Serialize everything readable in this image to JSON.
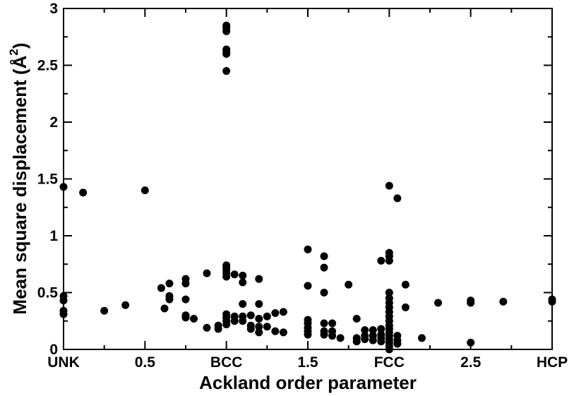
{
  "chart_data": {
    "type": "scatter",
    "xlabel": "Ackland order parameter",
    "ylabel": "Mean square displacement (Å²)",
    "ylabel_text": "Mean square displacement (Å",
    "ylabel_sup": "2",
    "ylabel_close": ")",
    "xlim": [
      0,
      3
    ],
    "ylim": [
      0,
      3
    ],
    "grid": false,
    "xticks": [
      {
        "value": 0,
        "label": "UNK"
      },
      {
        "value": 0.5,
        "label": "0.5"
      },
      {
        "value": 1,
        "label": "BCC"
      },
      {
        "value": 1.5,
        "label": "1.5"
      },
      {
        "value": 2,
        "label": "FCC"
      },
      {
        "value": 2.5,
        "label": "2.5"
      },
      {
        "value": 3,
        "label": "HCP"
      }
    ],
    "yticks": [
      {
        "value": 0,
        "label": "0"
      },
      {
        "value": 0.5,
        "label": "0.5"
      },
      {
        "value": 1,
        "label": "1"
      },
      {
        "value": 1.5,
        "label": "1.5"
      },
      {
        "value": 2,
        "label": "2"
      },
      {
        "value": 2.5,
        "label": "2.5"
      },
      {
        "value": 3,
        "label": "3"
      }
    ],
    "marker_color": "#000000",
    "points": [
      [
        0.0,
        1.43
      ],
      [
        0.0,
        0.47
      ],
      [
        0.0,
        0.43
      ],
      [
        0.0,
        0.34
      ],
      [
        0.0,
        0.31
      ],
      [
        0.12,
        1.38
      ],
      [
        0.5,
        1.4
      ],
      [
        0.25,
        0.34
      ],
      [
        0.38,
        0.39
      ],
      [
        0.6,
        0.54
      ],
      [
        0.62,
        0.36
      ],
      [
        0.65,
        0.58
      ],
      [
        0.65,
        0.47
      ],
      [
        0.65,
        0.44
      ],
      [
        0.75,
        0.62
      ],
      [
        0.75,
        0.58
      ],
      [
        0.75,
        0.44
      ],
      [
        0.75,
        0.3
      ],
      [
        0.75,
        0.28
      ],
      [
        0.8,
        0.27
      ],
      [
        0.88,
        0.67
      ],
      [
        0.88,
        0.19
      ],
      [
        0.95,
        0.21
      ],
      [
        0.95,
        0.18
      ],
      [
        1.0,
        2.85
      ],
      [
        1.0,
        2.83
      ],
      [
        1.0,
        2.8
      ],
      [
        1.0,
        2.64
      ],
      [
        1.0,
        2.62
      ],
      [
        1.0,
        2.6
      ],
      [
        1.0,
        2.45
      ],
      [
        1.0,
        0.74
      ],
      [
        1.0,
        0.72
      ],
      [
        1.0,
        0.7
      ],
      [
        1.0,
        0.67
      ],
      [
        1.0,
        0.64
      ],
      [
        1.0,
        0.31
      ],
      [
        1.0,
        0.28
      ],
      [
        1.0,
        0.25
      ],
      [
        1.0,
        0.22
      ],
      [
        1.05,
        0.66
      ],
      [
        1.05,
        0.29
      ],
      [
        1.05,
        0.25
      ],
      [
        1.1,
        0.65
      ],
      [
        1.1,
        0.59
      ],
      [
        1.1,
        0.4
      ],
      [
        1.1,
        0.29
      ],
      [
        1.1,
        0.25
      ],
      [
        1.15,
        0.3
      ],
      [
        1.15,
        0.21
      ],
      [
        1.15,
        0.18
      ],
      [
        1.2,
        0.62
      ],
      [
        1.2,
        0.4
      ],
      [
        1.2,
        0.27
      ],
      [
        1.2,
        0.2
      ],
      [
        1.2,
        0.15
      ],
      [
        1.25,
        0.29
      ],
      [
        1.25,
        0.2
      ],
      [
        1.3,
        0.32
      ],
      [
        1.3,
        0.16
      ],
      [
        1.35,
        0.33
      ],
      [
        1.35,
        0.15
      ],
      [
        1.5,
        0.88
      ],
      [
        1.5,
        0.56
      ],
      [
        1.5,
        0.26
      ],
      [
        1.5,
        0.23
      ],
      [
        1.5,
        0.19
      ],
      [
        1.5,
        0.16
      ],
      [
        1.5,
        0.13
      ],
      [
        1.6,
        0.82
      ],
      [
        1.6,
        0.72
      ],
      [
        1.6,
        0.5
      ],
      [
        1.6,
        0.23
      ],
      [
        1.6,
        0.16
      ],
      [
        1.6,
        0.13
      ],
      [
        1.65,
        0.23
      ],
      [
        1.65,
        0.16
      ],
      [
        1.65,
        0.12
      ],
      [
        1.7,
        0.1
      ],
      [
        1.75,
        0.57
      ],
      [
        1.8,
        0.27
      ],
      [
        1.8,
        0.1
      ],
      [
        1.8,
        0.07
      ],
      [
        1.85,
        0.17
      ],
      [
        1.85,
        0.12
      ],
      [
        1.85,
        0.09
      ],
      [
        1.9,
        0.17
      ],
      [
        1.9,
        0.12
      ],
      [
        1.9,
        0.08
      ],
      [
        1.95,
        0.78
      ],
      [
        1.95,
        0.18
      ],
      [
        1.95,
        0.13
      ],
      [
        1.95,
        0.1
      ],
      [
        1.95,
        0.07
      ],
      [
        2.0,
        1.44
      ],
      [
        2.0,
        0.85
      ],
      [
        2.0,
        0.82
      ],
      [
        2.0,
        0.78
      ],
      [
        2.0,
        0.5
      ],
      [
        2.0,
        0.45
      ],
      [
        2.0,
        0.41
      ],
      [
        2.0,
        0.37
      ],
      [
        2.0,
        0.33
      ],
      [
        2.0,
        0.29
      ],
      [
        2.0,
        0.25
      ],
      [
        2.0,
        0.21
      ],
      [
        2.0,
        0.18
      ],
      [
        2.0,
        0.15
      ],
      [
        2.0,
        0.12
      ],
      [
        2.0,
        0.09
      ],
      [
        2.0,
        0.06
      ],
      [
        2.0,
        0.03
      ],
      [
        2.0,
        0.0
      ],
      [
        2.05,
        1.33
      ],
      [
        2.05,
        0.12
      ],
      [
        2.05,
        0.08
      ],
      [
        2.05,
        0.05
      ],
      [
        2.1,
        0.57
      ],
      [
        2.1,
        0.37
      ],
      [
        2.2,
        0.1
      ],
      [
        2.3,
        0.41
      ],
      [
        2.5,
        0.43
      ],
      [
        2.5,
        0.41
      ],
      [
        2.5,
        0.06
      ],
      [
        2.7,
        0.42
      ],
      [
        3.0,
        0.44
      ],
      [
        3.0,
        0.42
      ]
    ]
  }
}
